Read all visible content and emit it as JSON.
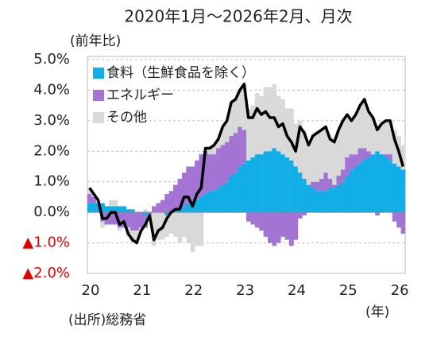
{
  "chart_data": {
    "type": "bar",
    "stacked": true,
    "title": "2020年1月～2026年2月、月次",
    "y_axis_label": "(前年比)",
    "x_axis_label": "(年)",
    "source": "(出所)総務省",
    "categories": [
      "20",
      null,
      null,
      null,
      null,
      null,
      null,
      null,
      null,
      null,
      null,
      null,
      "21",
      null,
      null,
      null,
      null,
      null,
      null,
      null,
      null,
      null,
      null,
      null,
      "22",
      null,
      null,
      null,
      null,
      null,
      null,
      null,
      null,
      null,
      null,
      null,
      "23",
      null,
      null,
      null,
      null,
      null,
      null,
      null,
      null,
      null,
      null,
      null,
      "24",
      null,
      null,
      null,
      null,
      null,
      null,
      null,
      null,
      null,
      null,
      null,
      "25",
      null,
      null,
      null,
      null,
      null,
      null,
      null,
      null,
      null,
      null,
      null,
      "26",
      null
    ],
    "series": [
      {
        "name": "食料（生鮮食品を除く）",
        "color": "#12aee8",
        "values": [
          0.3,
          0.3,
          0.3,
          0.3,
          0.2,
          0.2,
          0.2,
          0.2,
          0.2,
          0.1,
          0.1,
          0.0,
          0.0,
          -0.1,
          0.0,
          0.0,
          0.0,
          0.0,
          -0.1,
          0.0,
          0.1,
          0.1,
          0.2,
          0.3,
          0.3,
          0.4,
          0.5,
          0.6,
          0.7,
          0.7,
          0.8,
          0.9,
          1.0,
          1.2,
          1.3,
          1.5,
          1.6,
          1.7,
          1.8,
          1.9,
          1.9,
          2.0,
          2.0,
          2.1,
          2.0,
          1.9,
          1.8,
          1.7,
          1.5,
          1.3,
          1.1,
          0.9,
          0.8,
          0.7,
          0.7,
          0.7,
          0.8,
          0.8,
          0.9,
          1.0,
          1.2,
          1.4,
          1.5,
          1.6,
          1.7,
          1.8,
          1.9,
          2.0,
          1.9,
          1.8,
          1.7,
          1.6,
          1.5,
          1.4
        ]
      },
      {
        "name": "エネルギー",
        "color": "#a374d4",
        "values": [
          0.3,
          0.2,
          0.0,
          -0.3,
          -0.4,
          -0.4,
          -0.4,
          -0.5,
          -0.5,
          -0.5,
          -0.6,
          -0.6,
          -0.5,
          -0.4,
          -0.1,
          0.2,
          0.3,
          0.4,
          0.6,
          0.7,
          0.8,
          1.0,
          1.1,
          1.2,
          1.2,
          1.3,
          1.4,
          1.4,
          1.2,
          1.2,
          1.3,
          1.3,
          1.3,
          1.3,
          1.3,
          1.3,
          1.1,
          -0.3,
          -0.4,
          -0.5,
          -0.6,
          -0.8,
          -1.0,
          -1.1,
          -1.0,
          -0.8,
          -0.9,
          -1.1,
          -0.9,
          -0.2,
          -0.1,
          0.0,
          0.2,
          0.3,
          0.4,
          0.6,
          0.3,
          0.1,
          0.3,
          0.4,
          0.6,
          0.5,
          0.4,
          0.5,
          0.4,
          0.2,
          0.0,
          -0.1,
          0.0,
          0.1,
          0.2,
          -0.3,
          -0.5,
          -0.7
        ]
      },
      {
        "name": "その他",
        "color": "#d9d9d9",
        "values": [
          0.2,
          0.1,
          0.1,
          -0.2,
          0.0,
          0.2,
          0.2,
          -0.1,
          0.0,
          -0.3,
          -0.4,
          -0.4,
          -0.1,
          0.1,
          0.0,
          -1.1,
          -0.9,
          -0.9,
          -0.7,
          -0.7,
          -0.8,
          -1.0,
          -0.8,
          -1.0,
          -1.3,
          -1.1,
          -1.1,
          0.1,
          0.2,
          0.3,
          0.3,
          0.6,
          0.7,
          1.1,
          1.1,
          1.2,
          1.5,
          1.7,
          1.7,
          2.0,
          1.9,
          2.1,
          2.1,
          2.1,
          1.8,
          1.8,
          1.6,
          1.7,
          1.4,
          1.7,
          1.6,
          1.3,
          1.5,
          1.6,
          1.6,
          1.5,
          1.3,
          1.4,
          1.5,
          1.6,
          1.4,
          1.1,
          1.3,
          1.4,
          1.6,
          1.3,
          1.2,
          0.8,
          1.0,
          1.1,
          1.1,
          1.1,
          1.0,
          0.8
        ]
      }
    ],
    "line": {
      "color": "#000000",
      "values": [
        0.8,
        0.6,
        0.4,
        -0.2,
        -0.2,
        0.0,
        0.0,
        -0.4,
        -0.3,
        -0.7,
        -0.9,
        -1.0,
        -0.6,
        -0.4,
        -0.1,
        -0.9,
        -0.6,
        -0.5,
        -0.2,
        0.0,
        0.1,
        0.1,
        0.5,
        0.5,
        0.2,
        0.6,
        0.8,
        2.1,
        2.1,
        2.2,
        2.4,
        2.8,
        3.0,
        3.6,
        3.7,
        4.0,
        4.2,
        3.1,
        3.1,
        3.4,
        3.2,
        3.3,
        3.1,
        3.1,
        2.8,
        2.9,
        2.5,
        2.3,
        2.0,
        2.8,
        2.6,
        2.2,
        2.5,
        2.6,
        2.7,
        2.8,
        2.4,
        2.3,
        2.7,
        3.0,
        3.2,
        3.0,
        3.2,
        3.5,
        3.7,
        3.3,
        3.1,
        2.7,
        2.9,
        3.0,
        3.0,
        2.4,
        2.0,
        1.5
      ]
    },
    "ylim": [
      -2,
      5
    ],
    "yticks": [
      {
        "value": 5,
        "label": "5.0%"
      },
      {
        "value": 4,
        "label": "4.0%"
      },
      {
        "value": 3,
        "label": "3.0%"
      },
      {
        "value": 2,
        "label": "2.0%"
      },
      {
        "value": 1,
        "label": "1.0%"
      },
      {
        "value": 0,
        "label": "0.0%"
      },
      {
        "value": -1,
        "label": "▲1.0%"
      },
      {
        "value": -2,
        "label": "▲2.0%"
      }
    ],
    "grid": true,
    "legend": "upper left"
  }
}
